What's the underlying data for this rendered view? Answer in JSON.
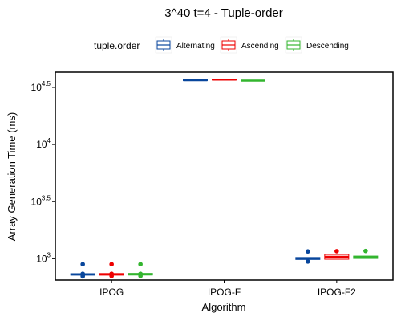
{
  "chart_data": {
    "type": "boxplot",
    "title": "3^40 t=4 - Tuple-order",
    "xlabel": "Algorithm",
    "ylabel": "Array Generation Time (ms)",
    "y_scale": "log10",
    "ylim": [
      650,
      43000
    ],
    "y_ticks": [
      {
        "base": "10",
        "exp": "3",
        "value": 1000
      },
      {
        "base": "10",
        "exp": "3.5",
        "value": 3162.28
      },
      {
        "base": "10",
        "exp": "4",
        "value": 10000
      },
      {
        "base": "10",
        "exp": "4.5",
        "value": 31622.8
      }
    ],
    "categories": [
      "IPOG",
      "IPOG-F",
      "IPOG-F2"
    ],
    "legend": {
      "title": "tuple.order",
      "position": "top",
      "entries": [
        "Alternating",
        "Ascending",
        "Descending"
      ]
    },
    "series": [
      {
        "name": "Alternating",
        "color": "#08469c",
        "boxes": [
          {
            "category": "IPOG",
            "q1": 718,
            "median": 730,
            "q3": 740,
            "outliers": [
              895,
              700,
              715,
              738
            ]
          },
          {
            "category": "IPOG-F",
            "q1": 36300,
            "median": 36600,
            "q3": 36900,
            "outliers": []
          },
          {
            "category": "IPOG-F2",
            "q1": 985,
            "median": 1005,
            "q3": 1025,
            "outliers": [
              1160,
              945
            ]
          }
        ]
      },
      {
        "name": "Ascending",
        "color": "#ee0000",
        "boxes": [
          {
            "category": "IPOG",
            "q1": 718,
            "median": 730,
            "q3": 742,
            "outliers": [
              895,
              705,
              738
            ]
          },
          {
            "category": "IPOG-F",
            "q1": 36700,
            "median": 37000,
            "q3": 37300,
            "outliers": []
          },
          {
            "category": "IPOG-F2",
            "q1": 990,
            "median": 1040,
            "q3": 1090,
            "outliers": [
              1165
            ]
          }
        ]
      },
      {
        "name": "Descending",
        "color": "#33b52f",
        "boxes": [
          {
            "category": "IPOG",
            "q1": 720,
            "median": 730,
            "q3": 744,
            "outliers": [
              895,
              705,
              738
            ]
          },
          {
            "category": "IPOG-F",
            "q1": 36000,
            "median": 36300,
            "q3": 36600,
            "outliers": []
          },
          {
            "category": "IPOG-F2",
            "q1": 1005,
            "median": 1030,
            "q3": 1055,
            "outliers": [
              1170
            ]
          }
        ]
      }
    ],
    "grid": false
  }
}
